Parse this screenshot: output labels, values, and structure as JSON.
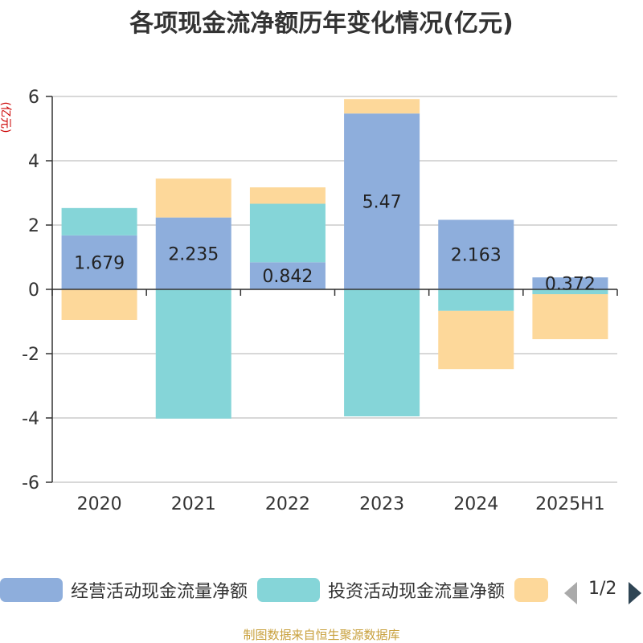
{
  "title": "各项现金流净额历年变化情况(亿元)",
  "unit_label": "(亿元)",
  "colors": {
    "operating": "#8eaedc",
    "investing": "#85d5d8",
    "financing": "#fdd89a",
    "unit_label": "#cc0000",
    "source": "#c8a03c"
  },
  "legend": {
    "items": [
      {
        "label": "经营活动现金流量净额"
      },
      {
        "label": "投资活动现金流量净额"
      },
      {
        "label": ""
      }
    ],
    "page_text": "1/2"
  },
  "source": "制图数据来自恒生聚源数据库",
  "chart_data": {
    "type": "bar",
    "stacked": true,
    "categories": [
      "2020",
      "2021",
      "2022",
      "2023",
      "2024",
      "2025H1"
    ],
    "ylim": [
      -6,
      6
    ],
    "yticks": [
      -6,
      -4,
      -2,
      0,
      2,
      4,
      6
    ],
    "grid": true,
    "legend_position": "bottom",
    "series": [
      {
        "name": "经营活动现金流量净额",
        "values": [
          1.679,
          2.235,
          0.842,
          5.47,
          2.163,
          0.372
        ],
        "labels": [
          "1.679",
          "2.235",
          "0.842",
          "5.47",
          "2.163",
          "0.372"
        ]
      },
      {
        "name": "投资活动现金流量净额",
        "values": [
          0.85,
          -4.02,
          1.82,
          -3.95,
          -0.67,
          -0.15
        ]
      },
      {
        "values": [
          -0.95,
          1.21,
          0.51,
          0.45,
          -1.81,
          -1.4
        ]
      }
    ]
  }
}
